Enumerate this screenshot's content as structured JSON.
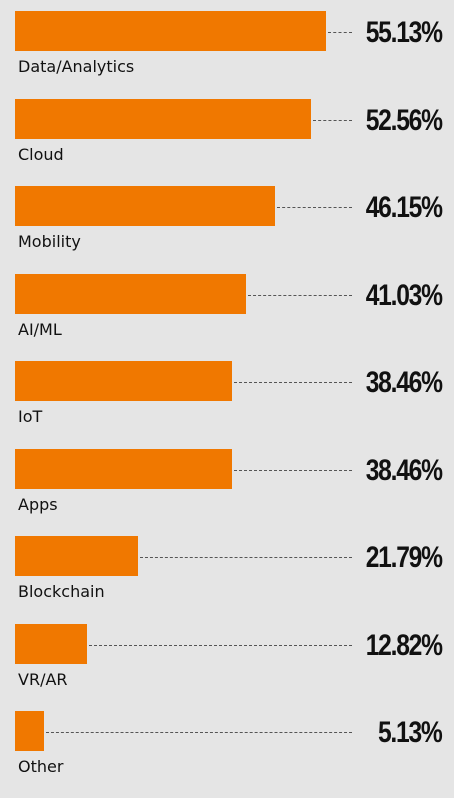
{
  "chart_data": {
    "type": "bar",
    "orientation": "horizontal",
    "categories": [
      "Data/Analytics",
      "Cloud",
      "Mobility",
      "AI/ML",
      "IoT",
      "Apps",
      "Blockchain",
      "VR/AR",
      "Other"
    ],
    "values": [
      55.13,
      52.56,
      46.15,
      41.03,
      38.46,
      38.46,
      21.79,
      12.82,
      5.13
    ],
    "value_labels": [
      "55.13%",
      "52.56%",
      "46.15%",
      "41.03%",
      "38.46%",
      "38.46%",
      "21.79%",
      "12.82%",
      "5.13%"
    ],
    "unit": "%",
    "xlim": [
      0,
      80
    ],
    "bar_color": "#f07800",
    "grid": false,
    "legend": "none"
  }
}
